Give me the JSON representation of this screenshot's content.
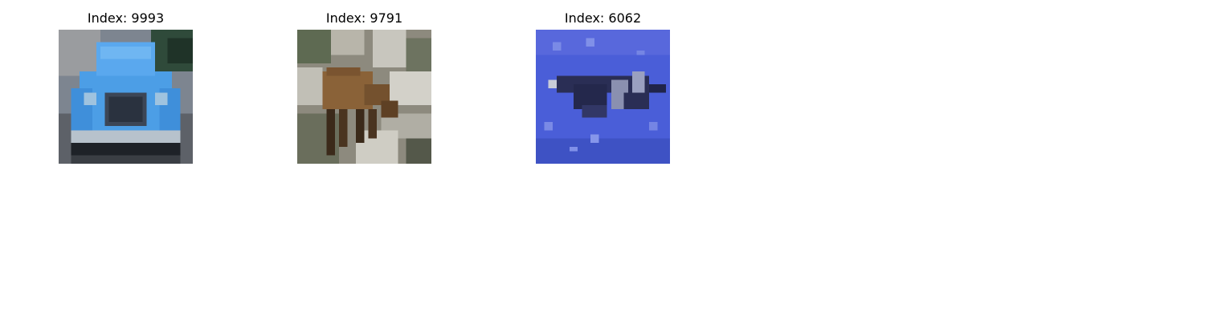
{
  "images": [
    {
      "title": "Index: 9993",
      "subject": "blue vintage car, front view"
    },
    {
      "title": "Index: 9791",
      "subject": "brown deer grazing among rocks"
    },
    {
      "title": "Index: 6062",
      "subject": "fighter jet against blue sky"
    }
  ],
  "colors": {
    "background": "#ffffff",
    "car_body": "#4a9ee8",
    "deer_body": "#8a6238",
    "sky": "#4a5ed8",
    "jet": "#2a2e55"
  }
}
